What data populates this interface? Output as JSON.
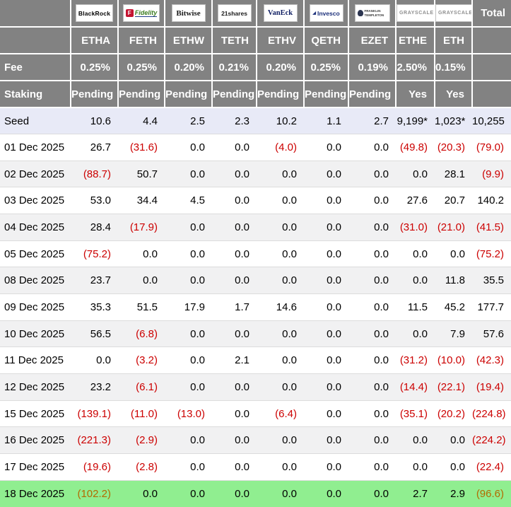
{
  "colors": {
    "header_gray": "#828282",
    "negative_red": "#cc0000",
    "green_row_bg": "#90ee90",
    "green_row_negative": "#b36b00",
    "seed_row_bg": "#e8eaf7",
    "stripe_bg": "#f1f1f2",
    "fidelity_red": "#c41431",
    "fidelity_green": "#3c7d22",
    "navy": "#1b2f7a",
    "grayscale_gray": "#8e8e8e"
  },
  "header": {
    "total_label": "Total",
    "fee_label": "Fee",
    "staking_label": "Staking",
    "providers": [
      {
        "name": "BlackRock",
        "ticker": "ETHA",
        "fee": "0.25%",
        "staking": "Pending"
      },
      {
        "name": "Fidelity",
        "logo_letter": "F",
        "ticker": "FETH",
        "fee": "0.25%",
        "staking": "Pending"
      },
      {
        "name": "Bitwise",
        "ticker": "ETHW",
        "fee": "0.20%",
        "staking": "Pending"
      },
      {
        "name": "21shares",
        "ticker": "TETH",
        "fee": "0.21%",
        "staking": "Pending"
      },
      {
        "name": "VanEck",
        "ticker": "ETHV",
        "fee": "0.20%",
        "staking": "Pending"
      },
      {
        "name": "Invesco",
        "ticker": "QETH",
        "fee": "0.25%",
        "staking": "Pending"
      },
      {
        "name": "Franklin Templeton",
        "ticker": "EZET",
        "fee": "0.19%",
        "staking": "Pending"
      },
      {
        "name": "Grayscale",
        "ticker": "ETHE",
        "fee": "2.50%",
        "staking": "Yes"
      },
      {
        "name": "Grayscale",
        "ticker": "ETH",
        "fee": "0.15%",
        "staking": "Yes"
      }
    ]
  },
  "seed_row": {
    "label": "Seed",
    "values": [
      "10.6",
      "4.4",
      "2.5",
      "2.3",
      "10.2",
      "1.1",
      "2.7",
      "9,199*",
      "1,023*",
      "10,255"
    ]
  },
  "rows": [
    {
      "date": "01 Dec 2025",
      "values": [
        "26.7",
        "(31.6)",
        "0.0",
        "0.0",
        "(4.0)",
        "0.0",
        "0.0",
        "(49.8)",
        "(20.3)",
        "(79.0)"
      ]
    },
    {
      "date": "02 Dec 2025",
      "values": [
        "(88.7)",
        "50.7",
        "0.0",
        "0.0",
        "0.0",
        "0.0",
        "0.0",
        "0.0",
        "28.1",
        "(9.9)"
      ]
    },
    {
      "date": "03 Dec 2025",
      "values": [
        "53.0",
        "34.4",
        "4.5",
        "0.0",
        "0.0",
        "0.0",
        "0.0",
        "27.6",
        "20.7",
        "140.2"
      ]
    },
    {
      "date": "04 Dec 2025",
      "values": [
        "28.4",
        "(17.9)",
        "0.0",
        "0.0",
        "0.0",
        "0.0",
        "0.0",
        "(31.0)",
        "(21.0)",
        "(41.5)"
      ]
    },
    {
      "date": "05 Dec 2025",
      "values": [
        "(75.2)",
        "0.0",
        "0.0",
        "0.0",
        "0.0",
        "0.0",
        "0.0",
        "0.0",
        "0.0",
        "(75.2)"
      ]
    },
    {
      "date": "08 Dec 2025",
      "values": [
        "23.7",
        "0.0",
        "0.0",
        "0.0",
        "0.0",
        "0.0",
        "0.0",
        "0.0",
        "11.8",
        "35.5"
      ]
    },
    {
      "date": "09 Dec 2025",
      "values": [
        "35.3",
        "51.5",
        "17.9",
        "1.7",
        "14.6",
        "0.0",
        "0.0",
        "11.5",
        "45.2",
        "177.7"
      ]
    },
    {
      "date": "10 Dec 2025",
      "values": [
        "56.5",
        "(6.8)",
        "0.0",
        "0.0",
        "0.0",
        "0.0",
        "0.0",
        "0.0",
        "7.9",
        "57.6"
      ]
    },
    {
      "date": "11 Dec 2025",
      "values": [
        "0.0",
        "(3.2)",
        "0.0",
        "2.1",
        "0.0",
        "0.0",
        "0.0",
        "(31.2)",
        "(10.0)",
        "(42.3)"
      ]
    },
    {
      "date": "12 Dec 2025",
      "values": [
        "23.2",
        "(6.1)",
        "0.0",
        "0.0",
        "0.0",
        "0.0",
        "0.0",
        "(14.4)",
        "(22.1)",
        "(19.4)"
      ]
    },
    {
      "date": "15 Dec 2025",
      "values": [
        "(139.1)",
        "(11.0)",
        "(13.0)",
        "0.0",
        "(6.4)",
        "0.0",
        "0.0",
        "(35.1)",
        "(20.2)",
        "(224.8)"
      ]
    },
    {
      "date": "16 Dec 2025",
      "values": [
        "(221.3)",
        "(2.9)",
        "0.0",
        "0.0",
        "0.0",
        "0.0",
        "0.0",
        "0.0",
        "0.0",
        "(224.2)"
      ]
    },
    {
      "date": "17 Dec 2025",
      "values": [
        "(19.6)",
        "(2.8)",
        "0.0",
        "0.0",
        "0.0",
        "0.0",
        "0.0",
        "0.0",
        "0.0",
        "(22.4)"
      ]
    },
    {
      "date": "18 Dec 2025",
      "values": [
        "(102.2)",
        "0.0",
        "0.0",
        "0.0",
        "0.0",
        "0.0",
        "0.0",
        "2.7",
        "2.9",
        "(96.6)"
      ],
      "highlight": true
    }
  ]
}
